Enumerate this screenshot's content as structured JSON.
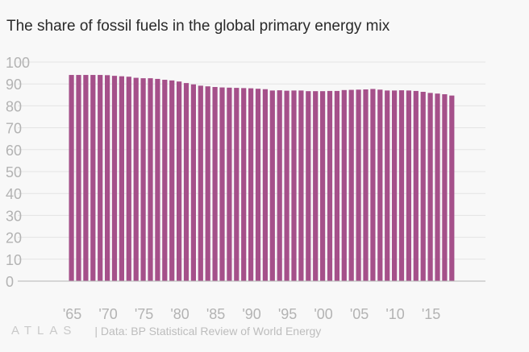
{
  "title": "The share of fossil fuels in the global primary energy mix",
  "footer": {
    "logo_text": "ATLAS",
    "source": "| Data: BP Statistical Review of World Energy"
  },
  "colors": {
    "bar": "#a5508a",
    "grid": "#e4e4e4",
    "axis": "#b5b5b5",
    "tick_label": "#b3b3b3",
    "background": "#f8f8f8"
  },
  "chart_data": {
    "type": "bar",
    "title": "The share of fossil fuels in the global primary energy mix",
    "xlabel": "",
    "ylabel": "",
    "ylim": [
      0,
      100
    ],
    "yticks": [
      0,
      10,
      20,
      30,
      40,
      50,
      60,
      70,
      80,
      90,
      100
    ],
    "xtick_labels": [
      {
        "year": 1965,
        "label": "'65"
      },
      {
        "year": 1970,
        "label": "'70"
      },
      {
        "year": 1975,
        "label": "'75"
      },
      {
        "year": 1980,
        "label": "'80"
      },
      {
        "year": 1985,
        "label": "'85"
      },
      {
        "year": 1990,
        "label": "'90"
      },
      {
        "year": 1995,
        "label": "'95"
      },
      {
        "year": 2000,
        "label": "'00"
      },
      {
        "year": 2005,
        "label": "'05"
      },
      {
        "year": 2010,
        "label": "'10"
      },
      {
        "year": 2015,
        "label": "'15"
      }
    ],
    "grid": true,
    "categories": [
      1965,
      1966,
      1967,
      1968,
      1969,
      1970,
      1971,
      1972,
      1973,
      1974,
      1975,
      1976,
      1977,
      1978,
      1979,
      1980,
      1981,
      1982,
      1983,
      1984,
      1985,
      1986,
      1987,
      1988,
      1989,
      1990,
      1991,
      1992,
      1993,
      1994,
      1995,
      1996,
      1997,
      1998,
      1999,
      2000,
      2001,
      2002,
      2003,
      2004,
      2005,
      2006,
      2007,
      2008,
      2009,
      2010,
      2011,
      2012,
      2013,
      2014,
      2015,
      2016,
      2017,
      2018
    ],
    "values": [
      94.1,
      94.1,
      94.1,
      94.1,
      94.1,
      94.0,
      93.7,
      93.5,
      93.3,
      92.8,
      92.6,
      92.6,
      92.3,
      91.9,
      91.6,
      91.1,
      90.4,
      89.8,
      89.2,
      88.9,
      88.6,
      88.4,
      88.3,
      88.2,
      88.1,
      88.0,
      87.8,
      87.6,
      87.0,
      87.1,
      86.9,
      87.0,
      87.0,
      86.7,
      86.7,
      86.7,
      86.8,
      86.8,
      87.2,
      87.3,
      87.4,
      87.5,
      87.7,
      87.4,
      87.0,
      87.0,
      87.1,
      87.0,
      86.8,
      86.4,
      85.9,
      85.6,
      85.3,
      84.7
    ]
  }
}
